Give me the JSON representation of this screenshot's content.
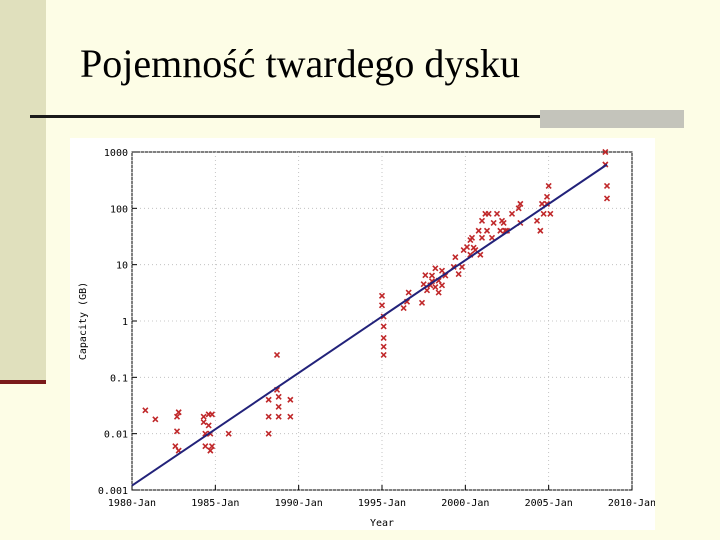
{
  "slide": {
    "title": "Pojemność twardego dysku"
  },
  "chart_data": {
    "type": "scatter",
    "title": "",
    "xlabel": "Year",
    "ylabel": "Capacity (GB)",
    "x_tick_labels": [
      "1980-Jan",
      "1985-Jan",
      "1990-Jan",
      "1995-Jan",
      "2000-Jan",
      "2005-Jan",
      "2010-Jan"
    ],
    "x_ticks": [
      1980,
      1985,
      1990,
      1995,
      2000,
      2005,
      2010
    ],
    "y_tick_labels": [
      "0.001",
      "0.01",
      "0.1",
      "1",
      "10",
      "100",
      "1000"
    ],
    "y_ticks": [
      0.001,
      0.01,
      0.1,
      1,
      10,
      100,
      1000
    ],
    "xlim": [
      1980,
      2010
    ],
    "ylim": [
      0.001,
      1000
    ],
    "y_scale": "log",
    "grid": true,
    "marker_color": "#c0282a",
    "trend_color": "#22227a",
    "trend_line": {
      "x": [
        1980,
        2008.5
      ],
      "y": [
        0.0012,
        600
      ]
    },
    "series": [
      {
        "points": [
          [
            1980.8,
            0.026
          ],
          [
            1981.4,
            0.018
          ],
          [
            1982.6,
            0.006
          ],
          [
            1982.7,
            0.02
          ],
          [
            1982.8,
            0.024
          ],
          [
            1982.7,
            0.011
          ],
          [
            1982.8,
            0.005
          ],
          [
            1984.3,
            0.02
          ],
          [
            1984.3,
            0.016
          ],
          [
            1984.4,
            0.01
          ],
          [
            1984.4,
            0.006
          ],
          [
            1984.6,
            0.022
          ],
          [
            1984.6,
            0.014
          ],
          [
            1984.7,
            0.01
          ],
          [
            1984.7,
            0.005
          ],
          [
            1984.8,
            0.022
          ],
          [
            1984.8,
            0.006
          ],
          [
            1985.8,
            0.01
          ],
          [
            1988.2,
            0.04
          ],
          [
            1988.2,
            0.02
          ],
          [
            1988.2,
            0.01
          ],
          [
            1988.7,
            0.25
          ],
          [
            1988.7,
            0.06
          ],
          [
            1988.8,
            0.045
          ],
          [
            1988.8,
            0.03
          ],
          [
            1988.8,
            0.02
          ],
          [
            1989.5,
            0.04
          ],
          [
            1989.5,
            0.02
          ],
          [
            1995.0,
            2.8
          ],
          [
            1995.0,
            1.9
          ],
          [
            1995.1,
            1.2
          ],
          [
            1995.1,
            0.8
          ],
          [
            1995.1,
            0.5
          ],
          [
            1995.1,
            0.35
          ],
          [
            1995.1,
            0.25
          ],
          [
            1996.3,
            1.7
          ],
          [
            1996.5,
            2.2
          ],
          [
            1996.6,
            3.2
          ],
          [
            1997.4,
            2.1
          ],
          [
            1997.5,
            4.5
          ],
          [
            1997.6,
            6.5
          ],
          [
            1997.7,
            3.5
          ],
          [
            1997.9,
            4.3
          ],
          [
            1998.0,
            6.4
          ],
          [
            1998.0,
            5.1
          ],
          [
            1998.2,
            8.6
          ],
          [
            1998.2,
            4.0
          ],
          [
            1998.4,
            3.2
          ],
          [
            1998.4,
            5.2
          ],
          [
            1998.6,
            7.8
          ],
          [
            1998.6,
            4.3
          ],
          [
            1998.8,
            6.4
          ],
          [
            1999.3,
            9.1
          ],
          [
            1999.4,
            13.6
          ],
          [
            1999.6,
            6.8
          ],
          [
            1999.8,
            9.1
          ],
          [
            1999.9,
            18.2
          ],
          [
            2000.1,
            20.5
          ],
          [
            2000.3,
            27.3
          ],
          [
            2000.3,
            15.0
          ],
          [
            2000.4,
            30.0
          ],
          [
            2000.5,
            20.0
          ],
          [
            2000.6,
            18.2
          ],
          [
            2000.8,
            40.0
          ],
          [
            2000.9,
            15.0
          ],
          [
            2001.0,
            60.0
          ],
          [
            2001.0,
            30.0
          ],
          [
            2001.2,
            80.0
          ],
          [
            2001.3,
            40.0
          ],
          [
            2001.4,
            80.0
          ],
          [
            2001.6,
            30.0
          ],
          [
            2001.9,
            80.0
          ],
          [
            2001.7,
            55.0
          ],
          [
            2002.1,
            40.0
          ],
          [
            2002.2,
            60.0
          ],
          [
            2002.3,
            55.0
          ],
          [
            2002.4,
            40.0
          ],
          [
            2002.5,
            40.0
          ],
          [
            2002.8,
            80.0
          ],
          [
            2003.2,
            100.0
          ],
          [
            2003.3,
            120.0
          ],
          [
            2003.3,
            55.0
          ],
          [
            2004.3,
            60.0
          ],
          [
            2004.5,
            40.0
          ],
          [
            2004.6,
            120.0
          ],
          [
            2004.7,
            80.0
          ],
          [
            2004.9,
            120.0
          ],
          [
            2004.9,
            160.0
          ],
          [
            2005.0,
            250.0
          ],
          [
            2005.1,
            80.0
          ],
          [
            2008.4,
            1000.0
          ],
          [
            2008.4,
            600.0
          ],
          [
            2008.5,
            250.0
          ],
          [
            2008.5,
            150.0
          ]
        ]
      }
    ]
  }
}
